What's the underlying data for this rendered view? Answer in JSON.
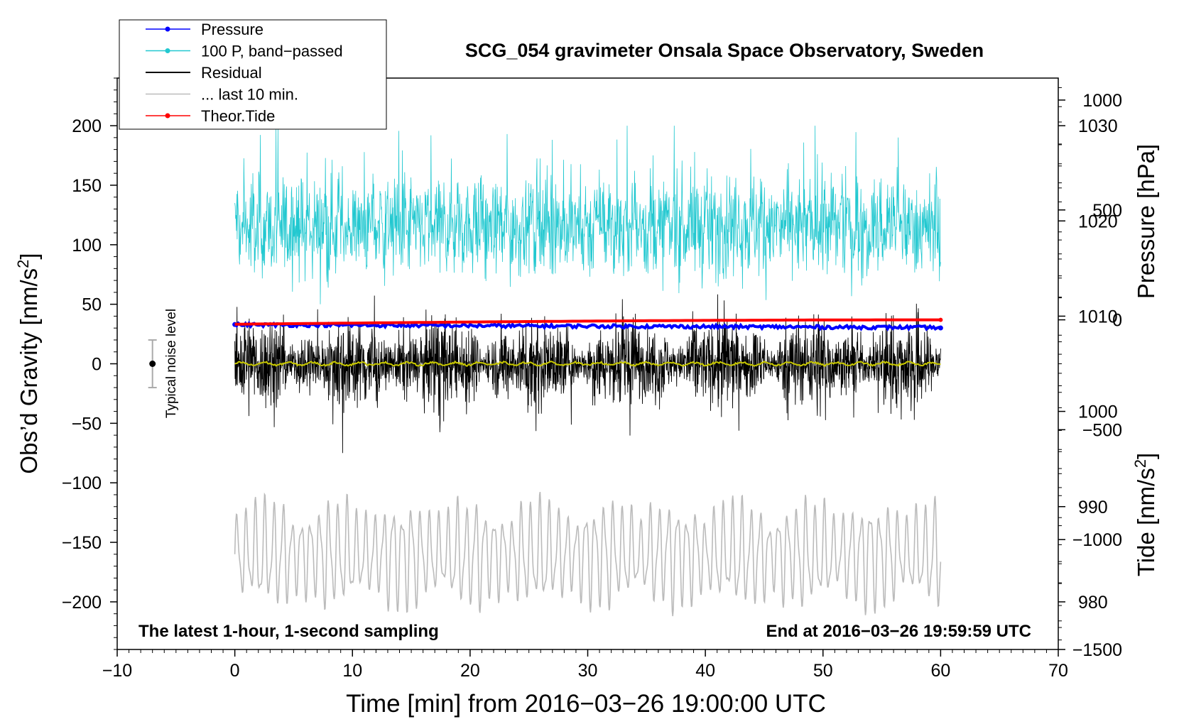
{
  "chart_data": {
    "type": "line",
    "title": "SCG_054 gravimeter Onsala Space Observatory, Sweden",
    "xlabel": "Time [min] from 2016−03−26 19:00:00 UTC",
    "ylabel_left_main": "Obs’d Gravity [nm/s",
    "ylabel_left_sup": "2",
    "ylabel_left_tail": "]",
    "ylabel_right_pressure": "Pressure [hPa]",
    "ylabel_right_tide_main": "Tide [nm/s",
    "ylabel_right_tide_sup": "2",
    "ylabel_right_tide_tail": "]",
    "xlim": [
      -10,
      70
    ],
    "ylim": [
      -240,
      240
    ],
    "pressure_axis": {
      "range": [
        975,
        1035
      ],
      "ticks": [
        980,
        990,
        1000,
        1010,
        1020,
        1030
      ]
    },
    "tide_axis": {
      "range": [
        -1500,
        1100
      ],
      "ticks": [
        -1500,
        -1000,
        -500,
        0,
        500,
        1000
      ]
    },
    "x_ticks": [
      -10,
      0,
      10,
      20,
      30,
      40,
      50,
      60,
      70
    ],
    "x_tick_labels": [
      "−10",
      "0",
      "10",
      "20",
      "30",
      "40",
      "50",
      "60",
      "70"
    ],
    "y_ticks": [
      -200,
      -150,
      -100,
      -50,
      0,
      50,
      100,
      150,
      200
    ],
    "y_tick_labels": [
      "−200",
      "−150",
      "−100",
      "−50",
      "0",
      "50",
      "100",
      "150",
      "200"
    ],
    "pressure_tick_labels": [
      "980",
      "990",
      "1000",
      "1010",
      "1020",
      "1030"
    ],
    "tide_tick_labels": [
      "−1500",
      "−1000",
      "−500",
      "0",
      "500",
      "1000"
    ],
    "legend": [
      {
        "label": "Pressure",
        "color": "#0000ff",
        "marker": true
      },
      {
        "label": "100 P, band−passed",
        "color": "#22c8d0",
        "marker": true
      },
      {
        "label": "Residual",
        "color": "#000000",
        "marker": false
      },
      {
        "label": "... last 10 min.",
        "color": "#bbbbbb",
        "marker": false
      },
      {
        "label": "Theor.Tide",
        "color": "#ff0000",
        "marker": true
      }
    ],
    "series": [
      {
        "name": "Pressure",
        "axis": "pressure",
        "color": "#0000ff",
        "x": [
          0,
          60
        ],
        "values": [
          1009.1,
          1008.8
        ]
      },
      {
        "name": "100 P, band-passed",
        "axis": "gravity",
        "color": "#22c8d0",
        "center": 115,
        "amplitude_range": [
          35,
          200
        ]
      },
      {
        "name": "Residual",
        "axis": "gravity",
        "color": "#000000",
        "center": 0,
        "amplitude_range": [
          -75,
          70
        ]
      },
      {
        "name": "Residual smoothed",
        "axis": "gravity",
        "color": "#c8c800",
        "center": 0
      },
      {
        "name": "... last 10 min.",
        "axis": "gravity",
        "color": "#bbbbbb",
        "center": -160,
        "amplitude_range": [
          -212,
          -85
        ]
      },
      {
        "name": "Theor.Tide",
        "axis": "tide",
        "color": "#ff0000",
        "x": [
          0,
          60
        ],
        "values": [
          -20,
          0
        ]
      }
    ],
    "noise_bar": {
      "label": "Typical noise level",
      "x": -7,
      "center": 0,
      "range": [
        -20,
        20
      ]
    },
    "annotations": {
      "bottom_left": "The latest 1-hour, 1-second sampling",
      "bottom_right": "End at 2016−03−26 19:59:59 UTC"
    }
  }
}
